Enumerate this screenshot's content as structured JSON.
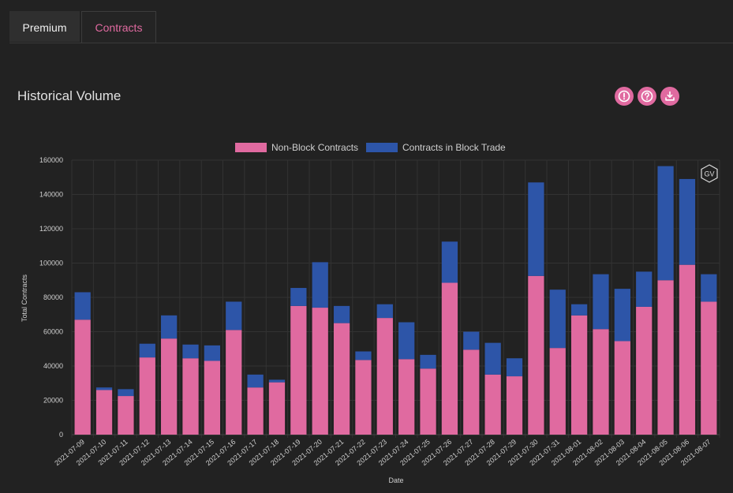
{
  "tabs": [
    {
      "label": "Premium",
      "active": false
    },
    {
      "label": "Contracts",
      "active": true
    }
  ],
  "page_title": "Historical Volume",
  "header_icons": [
    "info-icon",
    "help-icon",
    "download-icon"
  ],
  "watermark": "GV",
  "colors": {
    "background": "#222222",
    "non_block": "#e06aa0",
    "block": "#2d55a8",
    "accent": "#e06aa0"
  },
  "chart_data": {
    "type": "bar",
    "stacked": true,
    "title": "",
    "xlabel": "Date",
    "ylabel": "Total Contracts",
    "ylim": [
      0,
      160000
    ],
    "yticks": [
      0,
      20000,
      40000,
      60000,
      80000,
      100000,
      120000,
      140000,
      160000
    ],
    "legend_position": "top-center",
    "grid": true,
    "categories": [
      "2021-07-09",
      "2021-07-10",
      "2021-07-11",
      "2021-07-12",
      "2021-07-13",
      "2021-07-14",
      "2021-07-15",
      "2021-07-16",
      "2021-07-17",
      "2021-07-18",
      "2021-07-19",
      "2021-07-20",
      "2021-07-21",
      "2021-07-22",
      "2021-07-23",
      "2021-07-24",
      "2021-07-25",
      "2021-07-26",
      "2021-07-27",
      "2021-07-28",
      "2021-07-29",
      "2021-07-30",
      "2021-07-31",
      "2021-08-01",
      "2021-08-02",
      "2021-08-03",
      "2021-08-04",
      "2021-08-05",
      "2021-08-06",
      "2021-08-07"
    ],
    "series": [
      {
        "name": "Non-Block Contracts",
        "color": "#e06aa0",
        "values": [
          67000,
          26000,
          22500,
          45000,
          56000,
          44500,
          43000,
          61000,
          27500,
          30500,
          75000,
          74000,
          65000,
          43500,
          68000,
          44000,
          38500,
          88500,
          49500,
          35000,
          34000,
          92500,
          50500,
          69500,
          61500,
          54500,
          74500,
          90000,
          99000,
          77500
        ]
      },
      {
        "name": "Contracts in Block Trade",
        "color": "#2d55a8",
        "values": [
          16000,
          1500,
          4000,
          8000,
          13500,
          8000,
          9000,
          16500,
          7500,
          1500,
          10500,
          26500,
          10000,
          5000,
          8000,
          21500,
          8000,
          24000,
          10500,
          18500,
          10500,
          54500,
          34000,
          6500,
          32000,
          30500,
          20500,
          66500,
          50000,
          16000
        ]
      }
    ]
  }
}
